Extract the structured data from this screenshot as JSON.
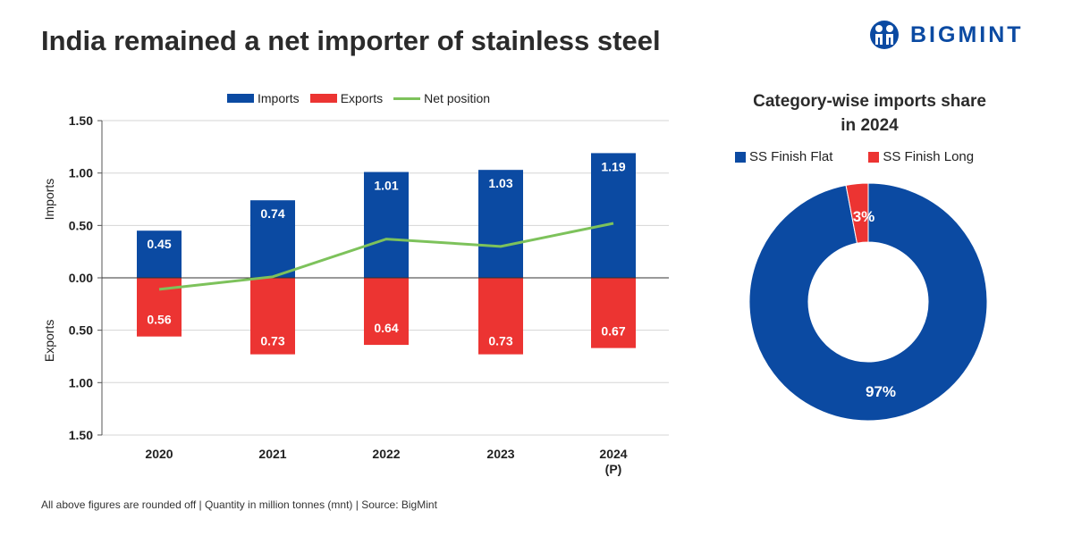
{
  "title": "India remained a net importer of stainless steel",
  "logo_text": "BIGMINT",
  "footer": "All above figures are rounded off | Quantity in million tonnes (mnt) | Source: BigMint",
  "chart_data": [
    {
      "type": "bar",
      "categories": [
        "2020",
        "2021",
        "2022",
        "2023",
        "2024\n(P)"
      ],
      "category_lines": [
        [
          "2020"
        ],
        [
          "2021"
        ],
        [
          "2022"
        ],
        [
          "2023"
        ],
        [
          "2024",
          "(P)"
        ]
      ],
      "series": [
        {
          "name": "Imports",
          "values": [
            0.45,
            0.74,
            1.01,
            1.03,
            1.19
          ],
          "labels": [
            "0.45",
            "0.74",
            "1.01",
            "1.03",
            "1.19"
          ],
          "color": "#0b4aa2"
        },
        {
          "name": "Exports",
          "values": [
            0.56,
            0.73,
            0.64,
            0.73,
            0.67
          ],
          "labels": [
            "0.56",
            "0.73",
            "0.64",
            "0.73",
            "0.67"
          ],
          "color": "#ec3432"
        },
        {
          "name": "Net position",
          "type": "line",
          "values": [
            -0.11,
            0.01,
            0.37,
            0.3,
            0.52
          ],
          "color": "#7dc25b"
        }
      ],
      "ylabel_upper": "Imports",
      "ylabel_lower": "Exports",
      "yticks": [
        "1.50",
        "1.00",
        "0.50",
        "0.00",
        "0.50",
        "1.00",
        "1.50"
      ],
      "ylim": [
        -1.5,
        1.5
      ],
      "grid": true,
      "legend": "top"
    },
    {
      "type": "pie",
      "donut": true,
      "title_lines": [
        "Category-wise imports share",
        "in 2024"
      ],
      "slices": [
        {
          "name": "SS Finish Flat",
          "value": 97,
          "label": "97%",
          "color": "#0b4aa2"
        },
        {
          "name": "SS Finish Long",
          "value": 3,
          "label": "3%",
          "color": "#ec3432"
        }
      ],
      "legend": "top"
    }
  ]
}
